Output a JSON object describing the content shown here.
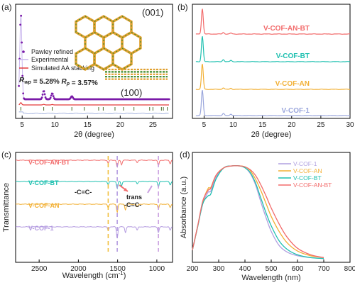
{
  "chart_data": [
    {
      "panel": "(a)",
      "type": "line",
      "xlabel": "2θ (degree)",
      "ylabel": "",
      "xlim": [
        4,
        28
      ],
      "xticks": [
        5,
        10,
        15,
        20,
        25
      ],
      "legend": [
        "Pawley refined",
        "Experimental",
        "Simulated AA stacking"
      ],
      "annotations": [
        "R",
        "wp",
        "= 5.28%",
        "R",
        "p",
        "= 3.57%",
        "(001)",
        "(100)"
      ],
      "colors": {
        "pawley": "#7a1aa8",
        "experimental": "#c9b6ee",
        "simulated": "#e43a3a",
        "difference": "#8ea0d6",
        "bragg": "#4a6a2a"
      },
      "series": [
        {
          "name": "Pawley refined",
          "peaks": [
            [
              4.8,
              1.0
            ],
            [
              8.3,
              0.1
            ],
            [
              9.6,
              0.07
            ],
            [
              12.6,
              0.035
            ]
          ]
        },
        {
          "name": "Experimental",
          "peaks": [
            [
              4.8,
              1.0
            ],
            [
              8.3,
              0.1
            ],
            [
              9.6,
              0.07
            ],
            [
              12.6,
              0.035
            ]
          ]
        },
        {
          "name": "Simulated AA stacking",
          "peaks": [
            [
              4.8,
              0.08
            ],
            [
              8.3,
              0.02
            ],
            [
              9.6,
              0.015
            ]
          ]
        }
      ],
      "bragg_positions": [
        4.8,
        8.3,
        9.6,
        12.6,
        14.5,
        16.7,
        17.4,
        19.2,
        20.5,
        22.1,
        24.5,
        25.0,
        26.3,
        26.6,
        27.2
      ]
    },
    {
      "panel": "(b)",
      "type": "line",
      "xlabel": "2θ (degree)",
      "ylabel": "",
      "xlim": [
        3,
        30
      ],
      "xticks": [
        5,
        10,
        15,
        20,
        25,
        30
      ],
      "series": [
        {
          "name": "V-COF-AN-BT",
          "color": "#f26b6b",
          "peaks": [
            [
              4.7,
              1.0
            ],
            [
              8.3,
              0.06
            ],
            [
              9.6,
              0.04
            ]
          ]
        },
        {
          "name": "V-COF-BT",
          "color": "#1fc0b0",
          "peaks": [
            [
              4.7,
              1.0
            ],
            [
              8.3,
              0.08
            ],
            [
              9.6,
              0.05
            ]
          ]
        },
        {
          "name": "V-COF-AN",
          "color": "#f2b035",
          "peaks": [
            [
              4.7,
              1.0
            ],
            [
              8.3,
              0.06
            ],
            [
              9.6,
              0.04
            ]
          ]
        },
        {
          "name": "V-COF-1",
          "color": "#9aa6dc",
          "peaks": [
            [
              4.7,
              1.0
            ],
            [
              8.3,
              0.08
            ],
            [
              9.6,
              0.06
            ]
          ]
        }
      ]
    },
    {
      "panel": "(c)",
      "type": "line",
      "xlabel": "Wavelength (cm",
      "xlabel_sup": "-1",
      "xlabel_end": ")",
      "ylabel": "Transmittance",
      "xlim": [
        2800,
        800
      ],
      "xticks": [
        2500,
        2000,
        1500,
        1000
      ],
      "annotations": [
        "-C=C-",
        "trans",
        "-C=C-"
      ],
      "marker_positions": [
        1620,
        1505,
        980
      ],
      "series": [
        {
          "name": "V-COF-AN-BT",
          "color": "#f26b6b",
          "bands": [
            [
              1620,
              0.25
            ],
            [
              1505,
              0.6
            ],
            [
              1450,
              0.4
            ],
            [
              1250,
              0.2
            ],
            [
              980,
              0.5
            ],
            [
              830,
              0.3
            ]
          ]
        },
        {
          "name": "V-COF-BT",
          "color": "#1fc0b0",
          "bands": [
            [
              1620,
              0.25
            ],
            [
              1505,
              0.6
            ],
            [
              1450,
              0.4
            ],
            [
              1250,
              0.2
            ],
            [
              980,
              0.5
            ],
            [
              830,
              0.3
            ]
          ]
        },
        {
          "name": "V-COF-AN",
          "color": "#f2b035",
          "bands": [
            [
              1620,
              0.3
            ],
            [
              1505,
              0.7
            ],
            [
              1400,
              0.5
            ],
            [
              1250,
              0.25
            ],
            [
              980,
              0.4
            ],
            [
              830,
              0.3
            ]
          ]
        },
        {
          "name": "V-COF-1",
          "color": "#b39ae0",
          "bands": [
            [
              1620,
              0.3
            ],
            [
              1505,
              1.0
            ],
            [
              1400,
              0.5
            ],
            [
              1250,
              0.3
            ],
            [
              980,
              0.5
            ],
            [
              830,
              0.3
            ]
          ]
        }
      ]
    },
    {
      "panel": "(d)",
      "type": "line",
      "xlabel": "Wavelength (nm)",
      "ylabel": "Absorbance (a.u.)",
      "xlim": [
        200,
        800
      ],
      "xticks": [
        200,
        300,
        400,
        500,
        600,
        700,
        800
      ],
      "legend_placement": "top-right",
      "series": [
        {
          "name": "V-COF-1",
          "color": "#b0a0e0",
          "x": [
            200,
            220,
            240,
            260,
            270,
            290,
            320,
            350,
            380,
            400,
            420,
            440,
            460,
            480,
            500,
            530,
            560,
            600,
            650,
            700
          ],
          "y": [
            0.1,
            0.35,
            0.6,
            0.72,
            0.73,
            0.88,
            0.98,
            1.0,
            1.0,
            0.98,
            0.92,
            0.8,
            0.62,
            0.45,
            0.3,
            0.15,
            0.08,
            0.04,
            0.02,
            0.01
          ]
        },
        {
          "name": "V-COF-AN",
          "color": "#f2b035",
          "x": [
            200,
            220,
            240,
            260,
            270,
            290,
            320,
            350,
            380,
            400,
            420,
            440,
            460,
            480,
            500,
            530,
            560,
            600,
            650,
            700
          ],
          "y": [
            0.1,
            0.35,
            0.62,
            0.76,
            0.77,
            0.9,
            0.98,
            1.0,
            1.0,
            0.99,
            0.95,
            0.86,
            0.74,
            0.6,
            0.46,
            0.3,
            0.18,
            0.09,
            0.04,
            0.02
          ]
        },
        {
          "name": "V-COF-BT",
          "color": "#1fc0b0",
          "x": [
            200,
            220,
            240,
            260,
            270,
            290,
            320,
            350,
            380,
            400,
            420,
            440,
            460,
            480,
            500,
            530,
            560,
            600,
            650,
            700
          ],
          "y": [
            0.1,
            0.35,
            0.6,
            0.68,
            0.7,
            0.86,
            0.98,
            1.0,
            1.0,
            0.98,
            0.93,
            0.82,
            0.66,
            0.5,
            0.36,
            0.2,
            0.11,
            0.05,
            0.02,
            0.01
          ]
        },
        {
          "name": "V-COF-AN-BT",
          "color": "#f26b6b",
          "x": [
            200,
            220,
            240,
            260,
            270,
            290,
            320,
            350,
            380,
            400,
            420,
            440,
            460,
            480,
            500,
            530,
            560,
            600,
            650,
            700
          ],
          "y": [
            0.1,
            0.36,
            0.63,
            0.74,
            0.76,
            0.9,
            0.98,
            1.0,
            1.0,
            0.99,
            0.96,
            0.9,
            0.8,
            0.68,
            0.55,
            0.38,
            0.24,
            0.12,
            0.05,
            0.02
          ]
        }
      ]
    }
  ]
}
